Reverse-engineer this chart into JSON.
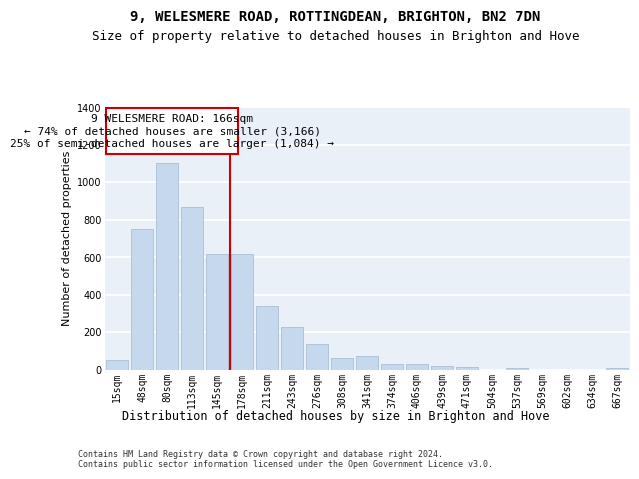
{
  "title1": "9, WELESMERE ROAD, ROTTINGDEAN, BRIGHTON, BN2 7DN",
  "title2": "Size of property relative to detached houses in Brighton and Hove",
  "xlabel": "Distribution of detached houses by size in Brighton and Hove",
  "ylabel": "Number of detached properties",
  "footnote": "Contains HM Land Registry data © Crown copyright and database right 2024.\nContains public sector information licensed under the Open Government Licence v3.0.",
  "categories": [
    "15sqm",
    "48sqm",
    "80sqm",
    "113sqm",
    "145sqm",
    "178sqm",
    "211sqm",
    "243sqm",
    "276sqm",
    "308sqm",
    "341sqm",
    "374sqm",
    "406sqm",
    "439sqm",
    "471sqm",
    "504sqm",
    "537sqm",
    "569sqm",
    "602sqm",
    "634sqm",
    "667sqm"
  ],
  "values": [
    50,
    750,
    1100,
    865,
    615,
    615,
    340,
    225,
    135,
    60,
    70,
    30,
    30,
    20,
    15,
    0,
    10,
    0,
    0,
    0,
    10
  ],
  "bar_color": "#c5d8ed",
  "bar_edge_color": "#a0b8d0",
  "vline_color": "#cc0000",
  "annotation_line1": "9 WELESMERE ROAD: 166sqm",
  "annotation_line2": "← 74% of detached houses are smaller (3,166)",
  "annotation_line3": "25% of semi-detached houses are larger (1,084) →",
  "annotation_box_color": "#cc0000",
  "ylim": [
    0,
    1400
  ],
  "yticks": [
    0,
    200,
    400,
    600,
    800,
    1000,
    1200,
    1400
  ],
  "background_color": "#eaf0f8",
  "grid_color": "#ffffff",
  "title1_fontsize": 10,
  "title2_fontsize": 9,
  "xlabel_fontsize": 8.5,
  "ylabel_fontsize": 8,
  "tick_fontsize": 7,
  "annotation_fontsize": 8,
  "footnote_fontsize": 6
}
